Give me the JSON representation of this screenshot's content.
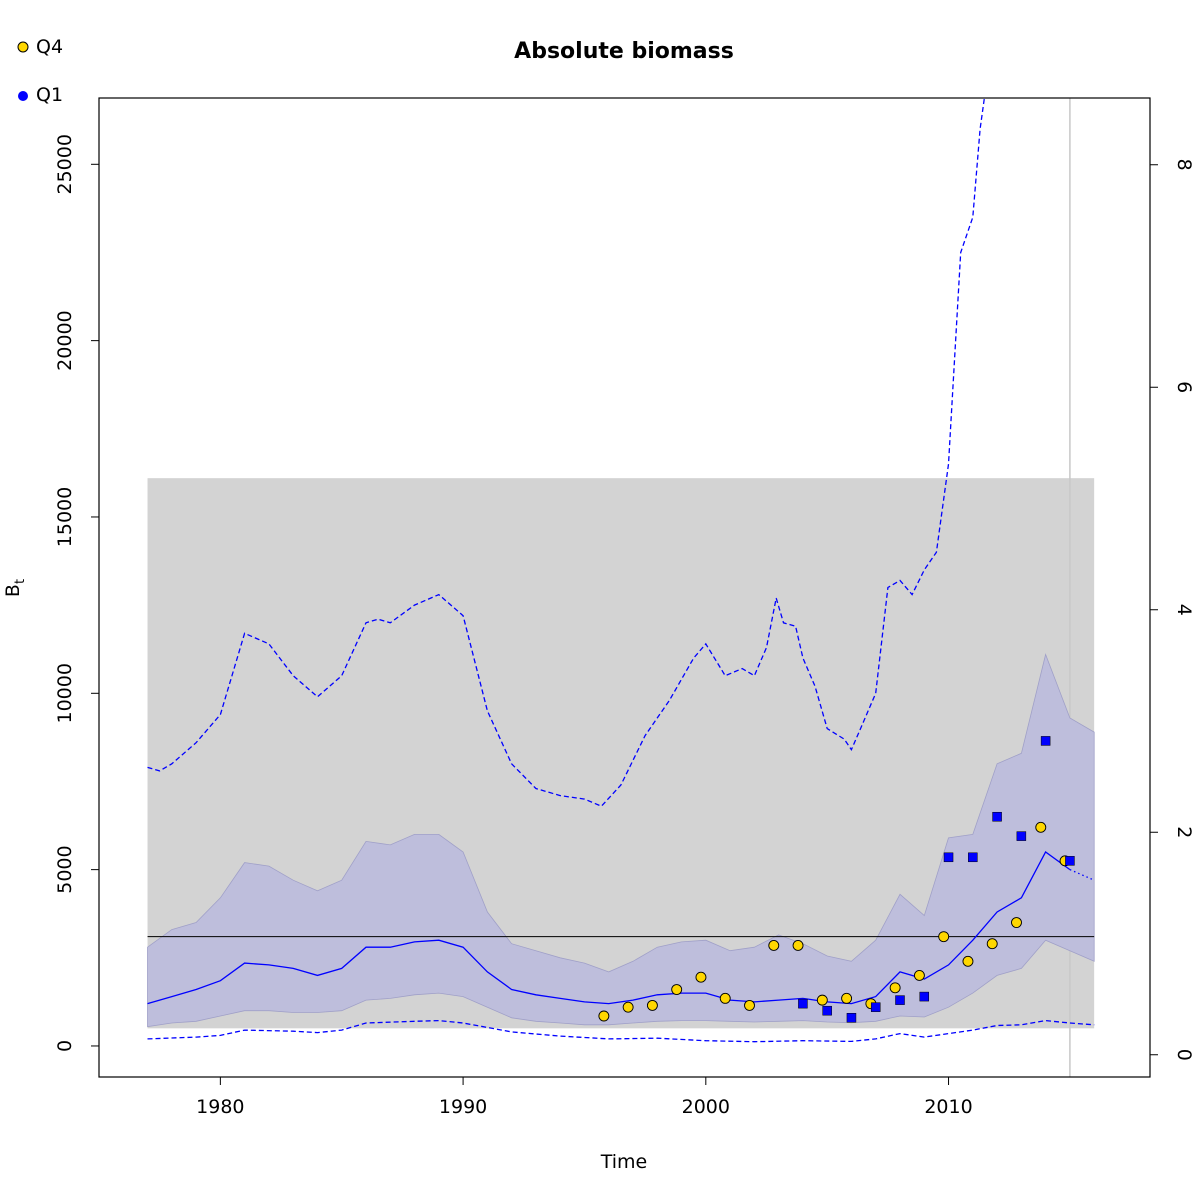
{
  "chart_data": {
    "type": "line",
    "title": "Absolute biomass",
    "xlabel": "Time",
    "ylabel": "B",
    "ylabel_sub": "t",
    "xlim": [
      1975.0,
      2018.3
    ],
    "ylim": [
      -880,
      26880
    ],
    "y2lim": [
      -0.2,
      8.6
    ],
    "x_ticks": [
      1980,
      1990,
      2000,
      2010
    ],
    "y_ticks": [
      0,
      5000,
      10000,
      15000,
      20000,
      25000
    ],
    "y2_ticks": [
      0,
      2,
      4,
      6,
      8
    ],
    "grid": false,
    "legend_position": "top-left",
    "colors": {
      "q4": "#FFD700",
      "q1": "#0000FF",
      "estimate_line": "#0000FF",
      "band_fill": "#BEBEDC",
      "background_box": "#D3D3D3"
    },
    "background_box": {
      "x": [
        1977,
        2016
      ],
      "y": [
        500,
        16100
      ]
    },
    "reference_line": {
      "y": 3100
    },
    "vertical_line": {
      "x": 2015
    },
    "series": [
      {
        "name": "Q4",
        "kind": "points",
        "shape": "circle",
        "x": [
          1995.8,
          1996.8,
          1997.8,
          1998.8,
          1999.8,
          2000.8,
          2001.8,
          2002.8,
          2003.8,
          2004.8,
          2005.8,
          2006.8,
          2007.8,
          2008.8,
          2009.8,
          2010.8,
          2011.8,
          2012.8,
          2013.8,
          2014.8
        ],
        "y": [
          850,
          1100,
          1150,
          1600,
          1950,
          1350,
          1150,
          2850,
          2850,
          1300,
          1350,
          1200,
          1650,
          2000,
          3100,
          2400,
          2900,
          3500,
          6200,
          5250
        ]
      },
      {
        "name": "Q1",
        "kind": "points",
        "shape": "square",
        "x": [
          2004,
          2005,
          2006,
          2007,
          2008,
          2009,
          2010,
          2011,
          2012,
          2013,
          2014,
          2015
        ],
        "y": [
          1200,
          1000,
          800,
          1100,
          1300,
          1400,
          5350,
          5350,
          6500,
          5950,
          8650,
          5250
        ]
      },
      {
        "kind": "line",
        "x": [
          1977,
          1978,
          1979,
          1980,
          1981,
          1982,
          1983,
          1984,
          1985,
          1986,
          1987,
          1988,
          1989,
          1990,
          1991,
          1992,
          1993,
          1994,
          1995,
          1996,
          1997,
          1998,
          1999,
          2000,
          2001,
          2002,
          2003,
          2004,
          2005,
          2006,
          2007,
          2008,
          2009,
          2010,
          2011,
          2012,
          2013,
          2014,
          2015
        ],
        "y": [
          1200,
          1400,
          1600,
          1850,
          2350,
          2300,
          2200,
          2000,
          2200,
          2800,
          2800,
          2950,
          3000,
          2800,
          2100,
          1600,
          1450,
          1350,
          1250,
          1200,
          1300,
          1450,
          1500,
          1500,
          1300,
          1250,
          1300,
          1350,
          1250,
          1200,
          1400,
          2100,
          1900,
          2300,
          3000,
          3800,
          4200,
          5500,
          5000
        ]
      },
      {
        "kind": "line",
        "dashed": "dotted",
        "x": [
          2015,
          2016
        ],
        "y": [
          5000,
          4700
        ]
      },
      {
        "kind": "band",
        "x": [
          1977,
          1978,
          1979,
          1980,
          1981,
          1982,
          1983,
          1984,
          1985,
          1986,
          1987,
          1988,
          1989,
          1990,
          1991,
          1992,
          1993,
          1994,
          1995,
          1996,
          1997,
          1998,
          1999,
          2000,
          2001,
          2002,
          2003,
          2004,
          2005,
          2006,
          2007,
          2008,
          2009,
          2010,
          2011,
          2012,
          2013,
          2014,
          2015,
          2016
        ],
        "lower": [
          550,
          650,
          700,
          850,
          1000,
          1000,
          950,
          950,
          1000,
          1300,
          1350,
          1450,
          1500,
          1400,
          1100,
          800,
          700,
          650,
          600,
          600,
          650,
          700,
          720,
          720,
          700,
          680,
          700,
          720,
          680,
          660,
          700,
          850,
          820,
          1100,
          1500,
          2000,
          2200,
          3000,
          2700,
          2400
        ],
        "upper": [
          2800,
          3300,
          3500,
          4200,
          5200,
          5100,
          4700,
          4400,
          4700,
          5800,
          5700,
          6000,
          6000,
          5500,
          3800,
          2900,
          2700,
          2500,
          2350,
          2100,
          2400,
          2800,
          2950,
          3000,
          2700,
          2800,
          3150,
          2900,
          2550,
          2400,
          3000,
          4300,
          3700,
          5900,
          6000,
          8000,
          8300,
          11100,
          9300,
          8900
        ]
      },
      {
        "kind": "line",
        "dashed": "dashed",
        "x": [
          1977,
          1977.5,
          1978,
          1979,
          1980,
          1981,
          1982,
          1983,
          1984,
          1985,
          1986,
          1986.5,
          1987,
          1988,
          1989,
          1990,
          1991,
          1992,
          1993,
          1994,
          1995,
          1995.7,
          1996.5,
          1997.5,
          1998.5,
          1999.5,
          2000,
          2000.8,
          2001.5,
          2002,
          2002.5,
          2002.9,
          2003.2,
          2003.7,
          2004,
          2004.5,
          2005,
          2005.7,
          2006,
          2006.5,
          2007,
          2007.5,
          2008,
          2008.5,
          2009,
          2009.5,
          2010,
          2010.5,
          2011,
          2011.3,
          2011.6,
          2011.9
        ],
        "y": [
          7900,
          7800,
          8000,
          8600,
          9400,
          11700,
          11400,
          10500,
          9900,
          10500,
          12000,
          12100,
          12000,
          12500,
          12800,
          12200,
          9500,
          8000,
          7300,
          7100,
          7000,
          6800,
          7400,
          8800,
          9800,
          11000,
          11400,
          10500,
          10700,
          10500,
          11300,
          12700,
          12000,
          11900,
          11000,
          10200,
          9000,
          8700,
          8400,
          9200,
          10000,
          13000,
          13200,
          12800,
          13500,
          14000,
          16500,
          22500,
          23500,
          26000,
          27500,
          29000
        ]
      },
      {
        "kind": "line",
        "dashed": "dashed",
        "x": [
          1977,
          1979,
          1980,
          1981,
          1983,
          1984,
          1985,
          1986,
          1988,
          1989,
          1990,
          1992,
          1994,
          1996,
          1998,
          2000,
          2002,
          2004,
          2006,
          2007,
          2008,
          2009,
          2010,
          2011,
          2012,
          2013,
          2014,
          2015,
          2016
        ],
        "y": [
          200,
          250,
          300,
          450,
          420,
          380,
          450,
          650,
          700,
          720,
          650,
          400,
          280,
          200,
          220,
          150,
          120,
          150,
          130,
          200,
          350,
          250,
          350,
          450,
          580,
          600,
          720,
          650,
          600
        ]
      }
    ]
  }
}
